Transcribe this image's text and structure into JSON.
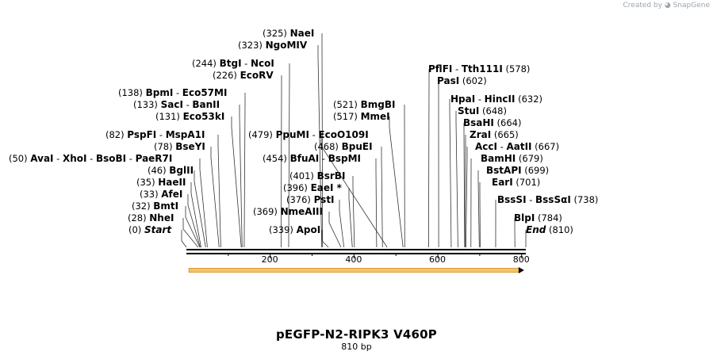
{
  "credit": "Created by ◕ SnapGene",
  "title": "pEGFP-N2-RIPK3 V460P",
  "subtitle": "810 bp",
  "colors": {
    "feature_fill": "#f5c26b",
    "feature_stroke": "#d38f1c",
    "line": "#000000",
    "credit": "#9aa5b1"
  },
  "sequence": {
    "length": 810,
    "ticks": [
      {
        "bp": 200,
        "label": "200"
      },
      {
        "bp": 400,
        "label": "400"
      },
      {
        "bp": 600,
        "label": "600"
      },
      {
        "bp": 800,
        "label": "800"
      }
    ]
  },
  "feature": {
    "start": 6,
    "end": 806,
    "direction": "forward"
  },
  "sites": [
    {
      "pos": "(0)",
      "bp": 0,
      "names": [
        "Start"
      ],
      "italic": true
    },
    {
      "pos": "(28)",
      "bp": 28,
      "names": [
        "NheI"
      ]
    },
    {
      "pos": "(32)",
      "bp": 32,
      "names": [
        "BmtI"
      ]
    },
    {
      "pos": "(33)",
      "bp": 33,
      "names": [
        "AfeI"
      ]
    },
    {
      "pos": "(35)",
      "bp": 35,
      "names": [
        "HaeII"
      ]
    },
    {
      "pos": "(46)",
      "bp": 46,
      "names": [
        "BglII"
      ]
    },
    {
      "pos": "(50)",
      "bp": 50,
      "names": [
        "AvaI",
        "XhoI",
        "BsoBI",
        "PaeR7I"
      ]
    },
    {
      "pos": "(78)",
      "bp": 78,
      "names": [
        "BseYI"
      ]
    },
    {
      "pos": "(82)",
      "bp": 82,
      "names": [
        "PspFI",
        "MspA1I"
      ]
    },
    {
      "pos": "(131)",
      "bp": 131,
      "names": [
        "Eco53kI"
      ]
    },
    {
      "pos": "(133)",
      "bp": 133,
      "names": [
        "SacI",
        "BanII"
      ]
    },
    {
      "pos": "(138)",
      "bp": 138,
      "names": [
        "BpmI",
        "Eco57MI"
      ]
    },
    {
      "pos": "(226)",
      "bp": 226,
      "names": [
        "EcoRV"
      ]
    },
    {
      "pos": "(244)",
      "bp": 244,
      "names": [
        "BtgI",
        "NcoI"
      ]
    },
    {
      "pos": "(323)",
      "bp": 323,
      "names": [
        "NgoMIV"
      ]
    },
    {
      "pos": "(325)",
      "bp": 325,
      "names": [
        "NaeI"
      ]
    },
    {
      "pos": "(339)",
      "bp": 339,
      "names": [
        "ApoI"
      ]
    },
    {
      "pos": "(369)",
      "bp": 369,
      "names": [
        "NmeAIII"
      ]
    },
    {
      "pos": "(376)",
      "bp": 376,
      "names": [
        "PstI"
      ]
    },
    {
      "pos": "(396)",
      "bp": 396,
      "names": [
        "EaeI *"
      ]
    },
    {
      "pos": "(401)",
      "bp": 401,
      "names": [
        "BsrBI"
      ]
    },
    {
      "pos": "(454)",
      "bp": 454,
      "names": [
        "BfuAI",
        "BspMI"
      ]
    },
    {
      "pos": "(468)",
      "bp": 468,
      "names": [
        "BpuEI"
      ]
    },
    {
      "pos": "(479)",
      "bp": 479,
      "names": [
        "PpuMI",
        "EcoO109I"
      ]
    },
    {
      "pos": "(517)",
      "bp": 517,
      "names": [
        "MmeI"
      ]
    },
    {
      "pos": "(521)",
      "bp": 521,
      "names": [
        "BmgBI"
      ]
    },
    {
      "pos": "(578)",
      "bp": 578,
      "names": [
        "PflFI",
        "Tth111I"
      ]
    },
    {
      "pos": "(602)",
      "bp": 602,
      "names": [
        "PasI"
      ]
    },
    {
      "pos": "(632)",
      "bp": 632,
      "names": [
        "HpaI",
        "HincII"
      ]
    },
    {
      "pos": "(648)",
      "bp": 648,
      "names": [
        "StuI"
      ]
    },
    {
      "pos": "(664)",
      "bp": 664,
      "names": [
        "BsaHI"
      ]
    },
    {
      "pos": "(665)",
      "bp": 665,
      "names": [
        "ZraI"
      ]
    },
    {
      "pos": "(667)",
      "bp": 667,
      "names": [
        "AccI",
        "AatII"
      ]
    },
    {
      "pos": "(679)",
      "bp": 679,
      "names": [
        "BamHI"
      ]
    },
    {
      "pos": "(699)",
      "bp": 699,
      "names": [
        "BstAPI"
      ]
    },
    {
      "pos": "(701)",
      "bp": 701,
      "names": [
        "EarI"
      ]
    },
    {
      "pos": "(738)",
      "bp": 738,
      "names": [
        "BssSI",
        "BssSαI"
      ]
    },
    {
      "pos": "(784)",
      "bp": 784,
      "names": [
        "BlpI"
      ]
    },
    {
      "pos": "(810)",
      "bp": 810,
      "names": [
        "End"
      ],
      "italic": true
    }
  ]
}
